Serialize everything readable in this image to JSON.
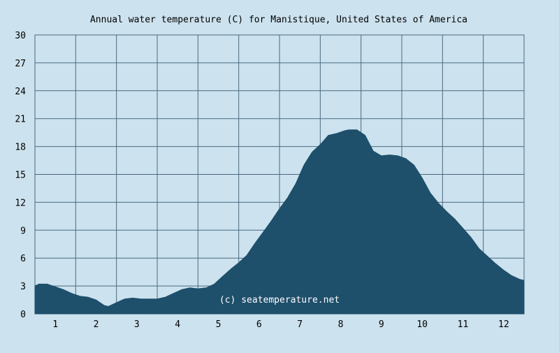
{
  "chart_data": {
    "type": "area",
    "title": "Annual water temperature (C) for Manistique, United States of America",
    "xlabel": "",
    "ylabel": "",
    "xlim": [
      0.5,
      12.5
    ],
    "ylim": [
      0,
      30
    ],
    "y_ticks": [
      0,
      3,
      6,
      9,
      12,
      15,
      18,
      21,
      24,
      27,
      30
    ],
    "x_ticks": [
      "1",
      "2",
      "3",
      "4",
      "5",
      "6",
      "7",
      "8",
      "9",
      "10",
      "11",
      "12"
    ],
    "grid": true,
    "fill_color": "#1e4f6b",
    "background_color": "#cce2ee",
    "grid_color": "#4a6a80",
    "series": [
      {
        "x": [
          0.5,
          0.6,
          0.8,
          1.0,
          1.2,
          1.4,
          1.6,
          1.8,
          2.0,
          2.2,
          2.3,
          2.5,
          2.7,
          2.9,
          3.1,
          3.3,
          3.5,
          3.7,
          3.9,
          4.1,
          4.3,
          4.5,
          4.7,
          4.9,
          5.1,
          5.3,
          5.5,
          5.7,
          5.9,
          6.1,
          6.3,
          6.5,
          6.7,
          6.9,
          7.1,
          7.3,
          7.5,
          7.7,
          7.9,
          8.1,
          8.2,
          8.4,
          8.6,
          8.8,
          9.0,
          9.2,
          9.4,
          9.6,
          9.8,
          10.0,
          10.2,
          10.4,
          10.6,
          10.8,
          11.0,
          11.2,
          11.4,
          11.6,
          11.8,
          12.0,
          12.2,
          12.4,
          12.5
        ],
        "values": [
          3.0,
          3.2,
          3.2,
          2.9,
          2.6,
          2.2,
          1.9,
          1.8,
          1.5,
          0.9,
          0.8,
          1.2,
          1.6,
          1.7,
          1.6,
          1.6,
          1.6,
          1.8,
          2.2,
          2.6,
          2.8,
          2.7,
          2.8,
          3.2,
          4.0,
          4.8,
          5.5,
          6.3,
          7.6,
          8.8,
          10.0,
          11.3,
          12.5,
          14.0,
          16.0,
          17.4,
          18.2,
          19.2,
          19.4,
          19.7,
          19.8,
          19.8,
          19.2,
          17.5,
          17.0,
          17.1,
          17.0,
          16.7,
          16.0,
          14.6,
          13.0,
          11.9,
          11.0,
          10.2,
          9.2,
          8.2,
          7.0,
          6.2,
          5.4,
          4.7,
          4.1,
          3.7,
          3.6
        ]
      }
    ],
    "watermark": "(c) seatemperature.net"
  }
}
